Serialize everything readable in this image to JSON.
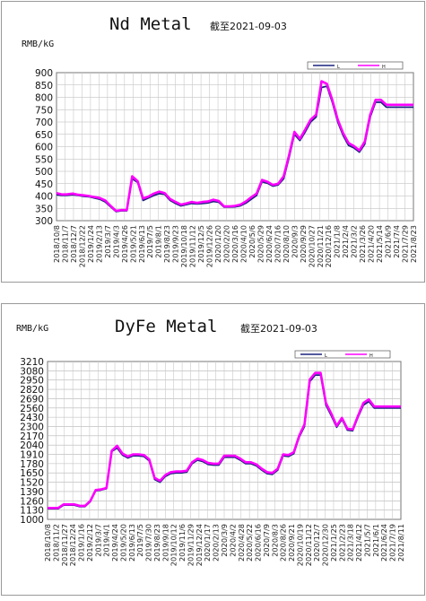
{
  "chart_data": [
    {
      "type": "line",
      "title": "Nd Metal",
      "subtitle": "截至2021-09-03",
      "ylabel": "RMB/kG",
      "ylim": [
        300,
        900
      ],
      "yticks": [
        300,
        350,
        400,
        450,
        500,
        550,
        600,
        650,
        700,
        750,
        800,
        850,
        900
      ],
      "grid": true,
      "legend": "top-right",
      "colors": {
        "L": "#1a237e",
        "H": "#ff00ff"
      },
      "x": [
        "2018/10/8",
        "2018/10/23",
        "2018/11/7",
        "2018/11/22",
        "2018/12/7",
        "2018/12/22",
        "2019/1/9",
        "2019/1/24",
        "2019/2/13",
        "2019/3/1",
        "2019/3/19",
        "2019/4/3",
        "2019/4/18",
        "2019/5/7",
        "2019/5/22",
        "2019/6/6",
        "2019/6/24",
        "2019/7/9",
        "2019/7/24",
        "2019/8/8",
        "2019/8/23",
        "2019/9/9",
        "2019/9/26",
        "2019/10/15",
        "2019/10/30",
        "2019/11/14",
        "2019/11/29",
        "2019/12/16",
        "2019/12/31",
        "2020/1/15",
        "2020/2/10",
        "2020/2/25",
        "2020/3/11",
        "2020/3/26",
        "2020/4/14",
        "2020/4/29",
        "2020/5/18",
        "2020/6/2",
        "2020/6/17",
        "2020/7/3",
        "2020/7/20",
        "2020/8/4",
        "2020/8/19",
        "2020/9/3",
        "2020/9/18",
        "2020/10/12",
        "2020/10/27",
        "2020/11/11",
        "2020/11/26",
        "2020/12/11",
        "2020/12/28",
        "2021/1/12",
        "2021/1/27",
        "2021/2/18",
        "2021/3/5",
        "2021/3/22",
        "2021/4/6",
        "2021/4/21",
        "2021/5/10",
        "2021/5/25",
        "2021/6/9",
        "2021/6/25",
        "2021/7/12",
        "2021/7/27",
        "2021/8/11",
        "2021/8/23",
        "2021/9/3"
      ],
      "series": [
        {
          "name": "L",
          "values": [
            405,
            402,
            403,
            405,
            402,
            399,
            397,
            392,
            387,
            376,
            356,
            337,
            340,
            340,
            470,
            455,
            382,
            392,
            402,
            410,
            407,
            382,
            370,
            360,
            365,
            370,
            368,
            370,
            372,
            378,
            375,
            355,
            355,
            356,
            360,
            371,
            387,
            402,
            458,
            452,
            440,
            445,
            470,
            555,
            650,
            625,
            660,
            700,
            720,
            840,
            845,
            780,
            700,
            645,
            605,
            595,
            578,
            610,
            720,
            780,
            780,
            760,
            760,
            760,
            760,
            760,
            760
          ]
        },
        {
          "name": "H",
          "values": [
            412,
            406,
            407,
            410,
            405,
            403,
            400,
            396,
            392,
            382,
            360,
            340,
            343,
            343,
            480,
            460,
            390,
            398,
            410,
            418,
            412,
            388,
            376,
            365,
            370,
            376,
            372,
            376,
            378,
            385,
            380,
            358,
            358,
            360,
            365,
            378,
            395,
            410,
            465,
            458,
            445,
            450,
            480,
            565,
            660,
            632,
            670,
            710,
            730,
            865,
            855,
            790,
            710,
            655,
            615,
            602,
            585,
            620,
            730,
            790,
            790,
            770,
            770,
            770,
            770,
            770,
            770
          ]
        }
      ],
      "tick_labels": [
        "2018/10/8",
        "2018/11/7",
        "2018/12/7",
        "2018/12/22",
        "2019/1/24",
        "2019/2/13",
        "2019/3/7",
        "2019/4/3",
        "2019/4/26",
        "2019/5/21",
        "2019/6/13",
        "2019/7/5",
        "2019/8/1",
        "2019/8/23",
        "2019/9/23",
        "2019/10/18",
        "2019/11/12",
        "2019/12/5",
        "2019/12/26",
        "2020/1/20",
        "2020/2/20",
        "2020/3/16",
        "2020/4/10",
        "2020/5/6",
        "2020/5/29",
        "2020/6/24",
        "2020/7/16",
        "2020/8/10",
        "2020/9/3",
        "2020/9/29",
        "2020/10/27",
        "2020/11/21",
        "2020/12/16",
        "2021/1/8",
        "2021/2/4",
        "2021/3/2",
        "2021/3/26",
        "2021/4/20",
        "2021/5/14",
        "2021/6/9",
        "2021/7/4",
        "2021/7/29",
        "2021/8/23"
      ]
    },
    {
      "type": "line",
      "title": "DyFe Metal",
      "subtitle": "截至2021-09-03",
      "ylabel": "RMB/kG",
      "ylim": [
        1000,
        3210
      ],
      "yticks": [
        1000,
        1130,
        1260,
        1390,
        1520,
        1650,
        1780,
        1910,
        2040,
        2170,
        2300,
        2430,
        2560,
        2690,
        2820,
        2950,
        3080,
        3210
      ],
      "grid": true,
      "legend": "top-right",
      "colors": {
        "L": "#1a237e",
        "H": "#ff00ff"
      },
      "x": [
        "2018/10/8",
        "2018/10/23",
        "2018/11/7",
        "2018/11/22",
        "2018/12/7",
        "2018/12/22",
        "2019/1/9",
        "2019/1/24",
        "2019/2/13",
        "2019/3/1",
        "2019/3/19",
        "2019/4/3",
        "2019/4/18",
        "2019/5/7",
        "2019/5/22",
        "2019/6/6",
        "2019/6/24",
        "2019/7/9",
        "2019/7/24",
        "2019/8/8",
        "2019/8/23",
        "2019/9/9",
        "2019/9/26",
        "2019/10/15",
        "2019/10/30",
        "2019/11/14",
        "2019/11/29",
        "2019/12/16",
        "2019/12/31",
        "2020/1/15",
        "2020/2/10",
        "2020/2/25",
        "2020/3/11",
        "2020/3/26",
        "2020/4/14",
        "2020/4/29",
        "2020/5/18",
        "2020/6/2",
        "2020/6/17",
        "2020/7/3",
        "2020/7/20",
        "2020/8/4",
        "2020/8/19",
        "2020/9/3",
        "2020/9/18",
        "2020/10/12",
        "2020/10/27",
        "2020/11/11",
        "2020/11/26",
        "2020/12/11",
        "2020/12/28",
        "2021/1/12",
        "2021/1/27",
        "2021/2/18",
        "2021/3/5",
        "2021/3/22",
        "2021/4/6",
        "2021/4/21",
        "2021/5/10",
        "2021/5/25",
        "2021/6/9",
        "2021/6/25",
        "2021/7/12",
        "2021/7/27",
        "2021/8/11",
        "2021/8/23",
        "2021/9/3"
      ],
      "series": [
        {
          "name": "L",
          "values": [
            1150,
            1150,
            1150,
            1200,
            1200,
            1200,
            1180,
            1180,
            1250,
            1400,
            1410,
            1430,
            1950,
            2000,
            1900,
            1860,
            1890,
            1890,
            1880,
            1820,
            1560,
            1520,
            1600,
            1640,
            1650,
            1650,
            1660,
            1780,
            1830,
            1810,
            1770,
            1760,
            1760,
            1870,
            1870,
            1870,
            1830,
            1780,
            1780,
            1750,
            1690,
            1640,
            1630,
            1690,
            1890,
            1880,
            1920,
            2150,
            2300,
            2930,
            3020,
            3020,
            2600,
            2450,
            2290,
            2400,
            2250,
            2240,
            2430,
            2600,
            2650,
            2560,
            2560,
            2560,
            2560,
            2560,
            2560
          ]
        },
        {
          "name": "H",
          "values": [
            1160,
            1160,
            1160,
            1210,
            1210,
            1210,
            1190,
            1190,
            1260,
            1410,
            1420,
            1440,
            1960,
            2030,
            1920,
            1880,
            1910,
            1910,
            1900,
            1840,
            1580,
            1540,
            1620,
            1660,
            1670,
            1670,
            1680,
            1800,
            1850,
            1830,
            1790,
            1780,
            1780,
            1890,
            1890,
            1890,
            1850,
            1800,
            1800,
            1770,
            1710,
            1660,
            1650,
            1710,
            1910,
            1900,
            1940,
            2170,
            2330,
            2960,
            3050,
            3050,
            2630,
            2480,
            2310,
            2420,
            2270,
            2260,
            2450,
            2630,
            2680,
            2580,
            2580,
            2580,
            2580,
            2580,
            2580
          ]
        }
      ],
      "tick_labels": [
        "2018/10/8",
        "2018/11/2",
        "2018/11/27",
        "2018/12/24",
        "2019/1/16",
        "2019/2/12",
        "2019/3/7",
        "2019/4/1",
        "2019/4/24",
        "2019/5/20",
        "2019/6/13",
        "2019/7/5",
        "2019/7/30",
        "2019/8/23",
        "2019/9/18",
        "2019/10/12",
        "2019/11/6",
        "2019/11/29",
        "2019/12/24",
        "2020/1/17",
        "2020/2/13",
        "2020/3/9",
        "2020/4/2",
        "2020/4/28",
        "2020/5/22",
        "2020/6/16",
        "2020/7/9",
        "2020/8/3",
        "2020/8/26",
        "2020/9/21",
        "2020/10/19",
        "2020/11/12",
        "2020/12/7",
        "2020/12/30",
        "2021/1/25",
        "2021/2/23",
        "2021/3/18",
        "2021/4/12",
        "2021/5/7",
        "2021/6/1",
        "2021/6/24",
        "2021/7/19",
        "2021/8/11"
      ]
    }
  ]
}
